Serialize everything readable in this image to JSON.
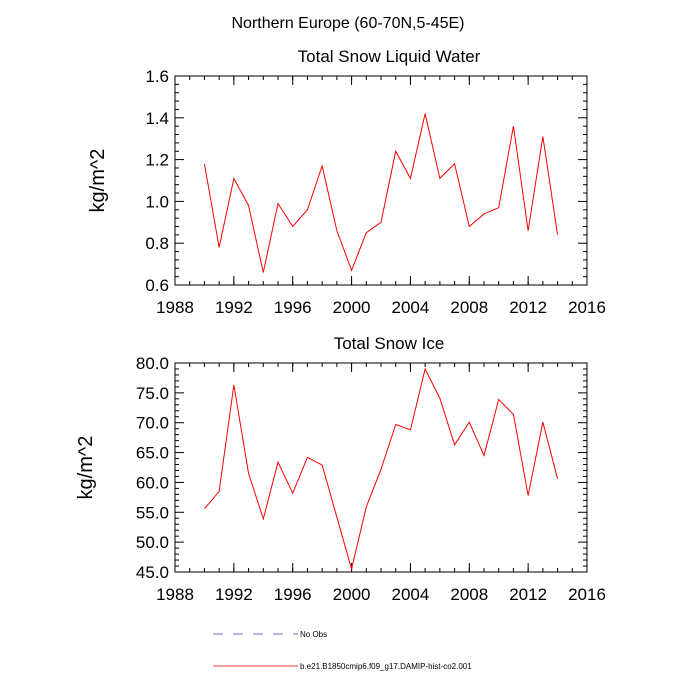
{
  "suptitle": "Northern Europe (60-70N,5-45E)",
  "chart_data": [
    {
      "type": "line",
      "title": "Total Snow Liquid Water",
      "xlabel": "",
      "ylabel": "kg/m^2",
      "xlim": [
        1988,
        2016
      ],
      "ylim": [
        0.6,
        1.6
      ],
      "xticks": [
        1988,
        1992,
        1996,
        2000,
        2004,
        2008,
        2012,
        2016
      ],
      "xtick_labels": [
        "1988",
        "1992",
        "1996",
        "2000",
        "2004",
        "2008",
        "2012",
        "2016"
      ],
      "yticks": [
        0.6,
        0.8,
        1.0,
        1.2,
        1.4,
        1.6
      ],
      "ytick_labels": [
        "0.6",
        "0.8",
        "1.0",
        "1.2",
        "1.4",
        "1.6"
      ],
      "grid": false,
      "x": [
        1990,
        1991,
        1992,
        1993,
        1994,
        1995,
        1996,
        1997,
        1998,
        1999,
        2000,
        2001,
        2002,
        2003,
        2004,
        2005,
        2006,
        2007,
        2008,
        2009,
        2010,
        2011,
        2012,
        2013,
        2014
      ],
      "series": [
        {
          "name": "b.e21.B1850cmip6.f09_g17.DAMIP-hist-co2.001",
          "color": "#ff0000",
          "values": [
            1.18,
            0.78,
            1.11,
            0.98,
            0.66,
            0.99,
            0.88,
            0.96,
            1.17,
            0.86,
            0.67,
            0.85,
            0.9,
            1.24,
            1.11,
            1.42,
            1.11,
            1.18,
            0.88,
            0.94,
            0.97,
            1.36,
            0.86,
            1.31,
            0.84
          ]
        }
      ]
    },
    {
      "type": "line",
      "title": "Total Snow Ice",
      "xlabel": "",
      "ylabel": "kg/m^2",
      "xlim": [
        1988,
        2016
      ],
      "ylim": [
        45,
        80
      ],
      "xticks": [
        1988,
        1992,
        1996,
        2000,
        2004,
        2008,
        2012,
        2016
      ],
      "xtick_labels": [
        "1988",
        "1992",
        "1996",
        "2000",
        "2004",
        "2008",
        "2012",
        "2016"
      ],
      "yticks": [
        45,
        50,
        55,
        60,
        65,
        70,
        75,
        80
      ],
      "ytick_labels": [
        "45.0",
        "50.0",
        "55.0",
        "60.0",
        "65.0",
        "70.0",
        "75.0",
        "80.0"
      ],
      "grid": false,
      "x": [
        1990,
        1991,
        1992,
        1993,
        1994,
        1995,
        1996,
        1997,
        1998,
        1999,
        2000,
        2001,
        2002,
        2003,
        2004,
        2005,
        2006,
        2007,
        2008,
        2009,
        2010,
        2011,
        2012,
        2013,
        2014
      ],
      "series": [
        {
          "name": "b.e21.B1850cmip6.f09_g17.DAMIP-hist-co2.001",
          "color": "#ff0000",
          "values": [
            55.6,
            58.5,
            76.3,
            61.5,
            53.9,
            63.4,
            58.2,
            64.2,
            62.9,
            54.2,
            45.5,
            55.9,
            62.2,
            69.7,
            68.8,
            79.0,
            74.1,
            66.3,
            70.1,
            64.5,
            73.9,
            71.4,
            57.8,
            70.1,
            60.6
          ]
        }
      ]
    }
  ],
  "legend": {
    "placement": "bottom",
    "entries": [
      {
        "label": "No Obs",
        "color": "#3344bb",
        "style": "dashed"
      },
      {
        "label": "b.e21.B1850cmip6.f09_g17.DAMIP-hist-co2.001",
        "color": "#ff0000",
        "style": "solid"
      }
    ]
  }
}
